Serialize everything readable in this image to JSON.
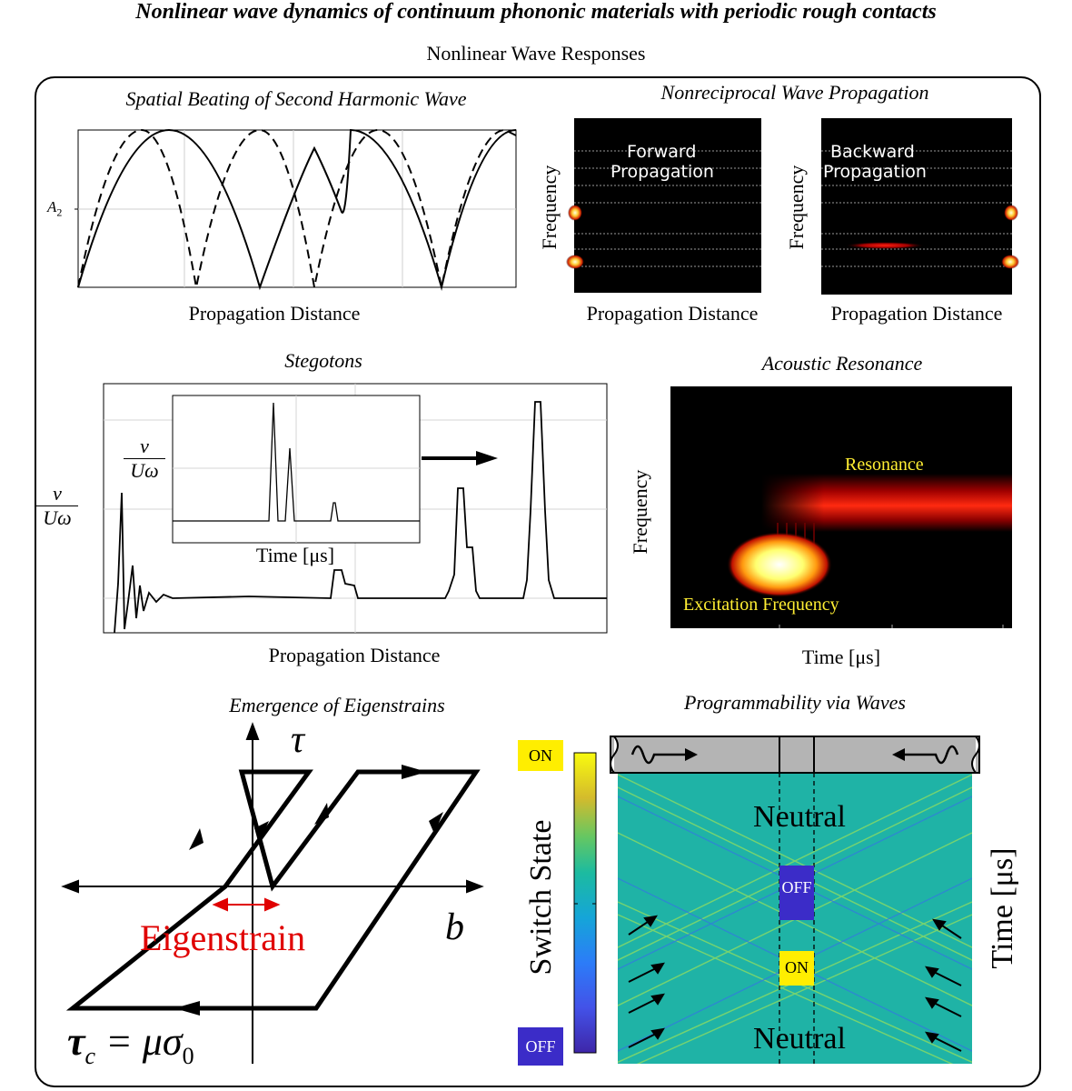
{
  "header": {
    "title": "Nonlinear wave dynamics of continuum phononic materials with periodic rough contacts",
    "subtitle": "Nonlinear Wave Responses"
  },
  "panels": {
    "spatial_beating": {
      "title": "Spatial Beating of Second Harmonic Wave",
      "ylabel_base": "A",
      "ylabel_sub": "2",
      "xlabel": "Propagation Distance"
    },
    "nonreciprocal": {
      "title": "Nonreciprocal Wave Propagation",
      "forward_label_1": "Forward",
      "forward_label_2": "Propagation",
      "backward_label_1": "Backward",
      "backward_label_2": "Propagation",
      "ylabel": "Frequency",
      "xlabel": "Propagation Distance"
    },
    "stegotons": {
      "title": "Stegotons",
      "ylabel_num": "v",
      "ylabel_den": "Uω",
      "inset_ylabel_num": "v",
      "inset_ylabel_den": "Uω",
      "inset_xlabel": "Time [μs]",
      "xlabel": "Propagation Distance"
    },
    "acoustic_resonance": {
      "title": "Acoustic Resonance",
      "resonance_label": "Resonance",
      "excitation_label": "Excitation Frequency",
      "ylabel": "Frequency",
      "xlabel": "Time [μs]"
    },
    "eigenstrains": {
      "title": "Emergence of Eigenstrains",
      "tau_label": "τ",
      "b_label": "b",
      "eigenstrain_label": "Eigenstrain",
      "tau_c_label": "τ",
      "tau_c_sub": "c",
      "tau_c_eq": " = μσ",
      "tau_c_sub2": "0"
    },
    "programmability": {
      "title": "Programmability via Waves",
      "on_label": "ON",
      "off_label": "OFF",
      "colorbar_label": "Switch State",
      "neutral_top": "Neutral",
      "neutral_bottom": "Neutral",
      "center_off": "OFF",
      "center_on": "ON",
      "ylabel": "Time [μs]"
    }
  },
  "colors": {
    "heatmap_bg": "#000000",
    "hot_red": "#e00000",
    "hot_yellow": "#ffff66",
    "teal": "#1fb3a6",
    "off_blue": "#3b2cc8",
    "on_yellow": "#ffee00",
    "eigen_red": "#e00000"
  }
}
